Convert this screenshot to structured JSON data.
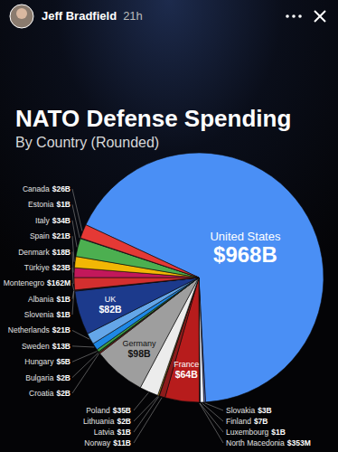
{
  "story_header": {
    "user": "Jeff Bradfield",
    "time": "21h"
  },
  "chart_data": {
    "type": "pie",
    "title": "NATO Defense Spending",
    "subtitle": "By Country (Rounded)",
    "categories": [
      "United States",
      "Slovakia",
      "Finland",
      "Luxembourg",
      "North Macedonia",
      "France",
      "Norway",
      "Latvia",
      "Lithuania",
      "Poland",
      "Germany",
      "Croatia",
      "Bulgaria",
      "Hungary",
      "Sweden",
      "Netherlands",
      "UK",
      "Slovenia",
      "Albania",
      "Montenegro",
      "Türkiye",
      "Denmark",
      "Spain",
      "Italy",
      "Estonia",
      "Canada"
    ],
    "values": [
      968,
      3,
      7,
      1,
      0.353,
      64,
      11,
      1,
      2,
      35,
      98,
      2,
      2,
      5,
      13,
      21,
      82,
      1,
      1,
      0.162,
      23,
      18,
      21,
      34,
      1,
      26
    ],
    "value_labels": [
      "$968B",
      "$3B",
      "$7B",
      "$1B",
      "$353M",
      "$64B",
      "$11B",
      "$1B",
      "$2B",
      "$35B",
      "$98B",
      "$2B",
      "$2B",
      "$5B",
      "$13B",
      "$21B",
      "$82B",
      "$1B",
      "$1B",
      "$162M",
      "$23B",
      "$18B",
      "$21B",
      "$34B",
      "$1B",
      "$26B"
    ],
    "colors": [
      "#4a8ff5",
      "#5c6bc0",
      "#e8eaf6",
      "#90caf9",
      "#f9a825",
      "#b71c1c",
      "#8e1b1b",
      "#7b1f2b",
      "#fbc02d",
      "#ececec",
      "#9e9e9e",
      "#c62828",
      "#2e7d32",
      "#43a047",
      "#1e88e5",
      "#64a6e8",
      "#1c3a8c",
      "#3949ab",
      "#e53935",
      "#d84315",
      "#d32f2f",
      "#c2185b",
      "#f2b705",
      "#4caf50",
      "#1565c0",
      "#e53935"
    ],
    "data_labels": true
  }
}
